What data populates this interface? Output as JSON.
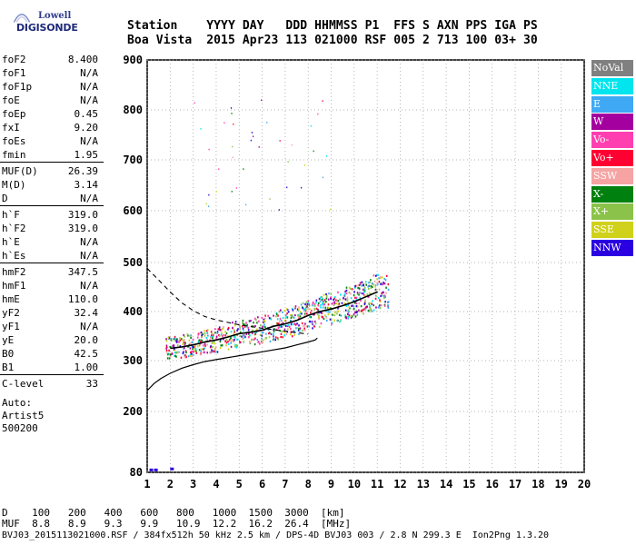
{
  "logo": {
    "brand": "Lowell",
    "name": "DIGISONDE"
  },
  "header": {
    "labels": [
      "Station",
      "YYYY",
      "DAY",
      "DDD",
      "HHMMSS",
      "P1",
      "FFS",
      "S",
      "AXN",
      "PPS",
      "IGA",
      "PS"
    ],
    "values": [
      "Boa Vista",
      "2015",
      "Apr23",
      "113",
      "021000",
      "RSF",
      "005",
      "2",
      "713",
      "100",
      "03+",
      "30"
    ]
  },
  "params": [
    {
      "label": "foF2",
      "value": "8.400"
    },
    {
      "label": "foF1",
      "value": "N/A"
    },
    {
      "label": "foF1p",
      "value": "N/A"
    },
    {
      "label": "foE",
      "value": "N/A"
    },
    {
      "label": "foEp",
      "value": "0.45"
    },
    {
      "label": "fxI",
      "value": "9.20"
    },
    {
      "label": "foEs",
      "value": "N/A"
    },
    {
      "label": "fmin",
      "value": "1.95"
    },
    {
      "label": "MUF(D)",
      "value": "26.39"
    },
    {
      "label": "M(D)",
      "value": "3.14"
    },
    {
      "label": "D",
      "value": "N/A"
    },
    {
      "label": "h`F",
      "value": "319.0"
    },
    {
      "label": "h`F2",
      "value": "319.0"
    },
    {
      "label": "h`E",
      "value": "N/A"
    },
    {
      "label": "h`Es",
      "value": "N/A"
    },
    {
      "label": "hmF2",
      "value": "347.5"
    },
    {
      "label": "hmF1",
      "value": "N/A"
    },
    {
      "label": "hmE",
      "value": "110.0"
    },
    {
      "label": "yF2",
      "value": "32.4"
    },
    {
      "label": "yF1",
      "value": "N/A"
    },
    {
      "label": "yE",
      "value": "20.0"
    },
    {
      "label": "B0",
      "value": "42.5"
    },
    {
      "label": "B1",
      "value": "1.00"
    },
    {
      "label": "C-level",
      "value": "33"
    }
  ],
  "autoscale": {
    "line1": "Auto:",
    "line2": "Artist5",
    "line3": "500200"
  },
  "legend": [
    {
      "label": "NoVal",
      "color": "#808080"
    },
    {
      "label": "NNE",
      "color": "#00e5ee"
    },
    {
      "label": "E",
      "color": "#3fa9f5"
    },
    {
      "label": "W",
      "color": "#a4009f"
    },
    {
      "label": "Vo-",
      "color": "#ff3fb0"
    },
    {
      "label": "Vo+",
      "color": "#ff0033"
    },
    {
      "label": "SSW",
      "color": "#f5a3a3"
    },
    {
      "label": "X-",
      "color": "#00800e"
    },
    {
      "label": "X+",
      "color": "#8bc34a"
    },
    {
      "label": "SSE",
      "color": "#cfd11a"
    },
    {
      "label": "NNW",
      "color": "#2a00e0"
    }
  ],
  "footer": {
    "d_label": "D",
    "d_values": [
      "100",
      "200",
      "400",
      "600",
      "800",
      "1000",
      "1500",
      "3000",
      "[km]"
    ],
    "muf_label": "MUF",
    "muf_values": [
      "8.8",
      "8.9",
      "9.3",
      "9.9",
      "10.9",
      "12.2",
      "16.2",
      "26.4",
      "[MHz]"
    ],
    "source": "BVJ03_2015113021000.RSF / 384fx512h 50 kHz 2.5 km / DPS-4D BVJ03 003 / 2.8 N 299.3 E  Ion2Png 1.3.20"
  },
  "chart_data": {
    "type": "scatter",
    "title": "",
    "xlabel": "",
    "ylabel": "",
    "xlim": [
      1,
      20
    ],
    "ylim": [
      80,
      900
    ],
    "x_ticks": [
      1,
      2,
      3,
      4,
      5,
      6,
      7,
      8,
      9,
      10,
      11,
      12,
      13,
      14,
      15,
      16,
      17,
      18,
      19,
      20
    ],
    "y_ticks": [
      80,
      200,
      300,
      400,
      500,
      600,
      700,
      800,
      900
    ],
    "grid": "dotted",
    "series": [
      {
        "name": "O-trace",
        "values": [
          [
            2.0,
            325
          ],
          [
            2.5,
            328
          ],
          [
            3.0,
            332
          ],
          [
            3.5,
            338
          ],
          [
            4.0,
            342
          ],
          [
            4.5,
            348
          ],
          [
            5.0,
            355
          ],
          [
            5.5,
            358
          ],
          [
            6.0,
            362
          ],
          [
            6.5,
            370
          ],
          [
            7.0,
            375
          ],
          [
            7.5,
            382
          ],
          [
            8.0,
            392
          ],
          [
            8.5,
            400
          ],
          [
            9.0,
            405
          ],
          [
            9.5,
            412
          ],
          [
            10.0,
            420
          ],
          [
            10.5,
            430
          ],
          [
            11.0,
            440
          ]
        ]
      },
      {
        "name": "F2-profile",
        "values": [
          [
            1.0,
            241
          ],
          [
            1.3,
            255
          ],
          [
            1.6,
            265
          ],
          [
            2.0,
            275
          ],
          [
            2.5,
            285
          ],
          [
            3.0,
            292
          ],
          [
            3.5,
            298
          ],
          [
            4.0,
            302
          ],
          [
            5.0,
            310
          ],
          [
            6.0,
            318
          ],
          [
            7.0,
            326
          ],
          [
            7.5,
            332
          ],
          [
            8.0,
            338
          ],
          [
            8.3,
            342
          ],
          [
            8.4,
            346
          ]
        ]
      },
      {
        "name": "upper-profile-dashed",
        "values": [
          [
            1.0,
            488
          ],
          [
            1.5,
            464
          ],
          [
            2.0,
            440
          ],
          [
            2.5,
            418
          ],
          [
            3.0,
            402
          ],
          [
            3.5,
            390
          ],
          [
            4.0,
            383
          ],
          [
            5.0,
            373
          ],
          [
            6.0,
            366
          ],
          [
            7.0,
            360
          ],
          [
            8.0,
            354
          ]
        ]
      }
    ]
  }
}
